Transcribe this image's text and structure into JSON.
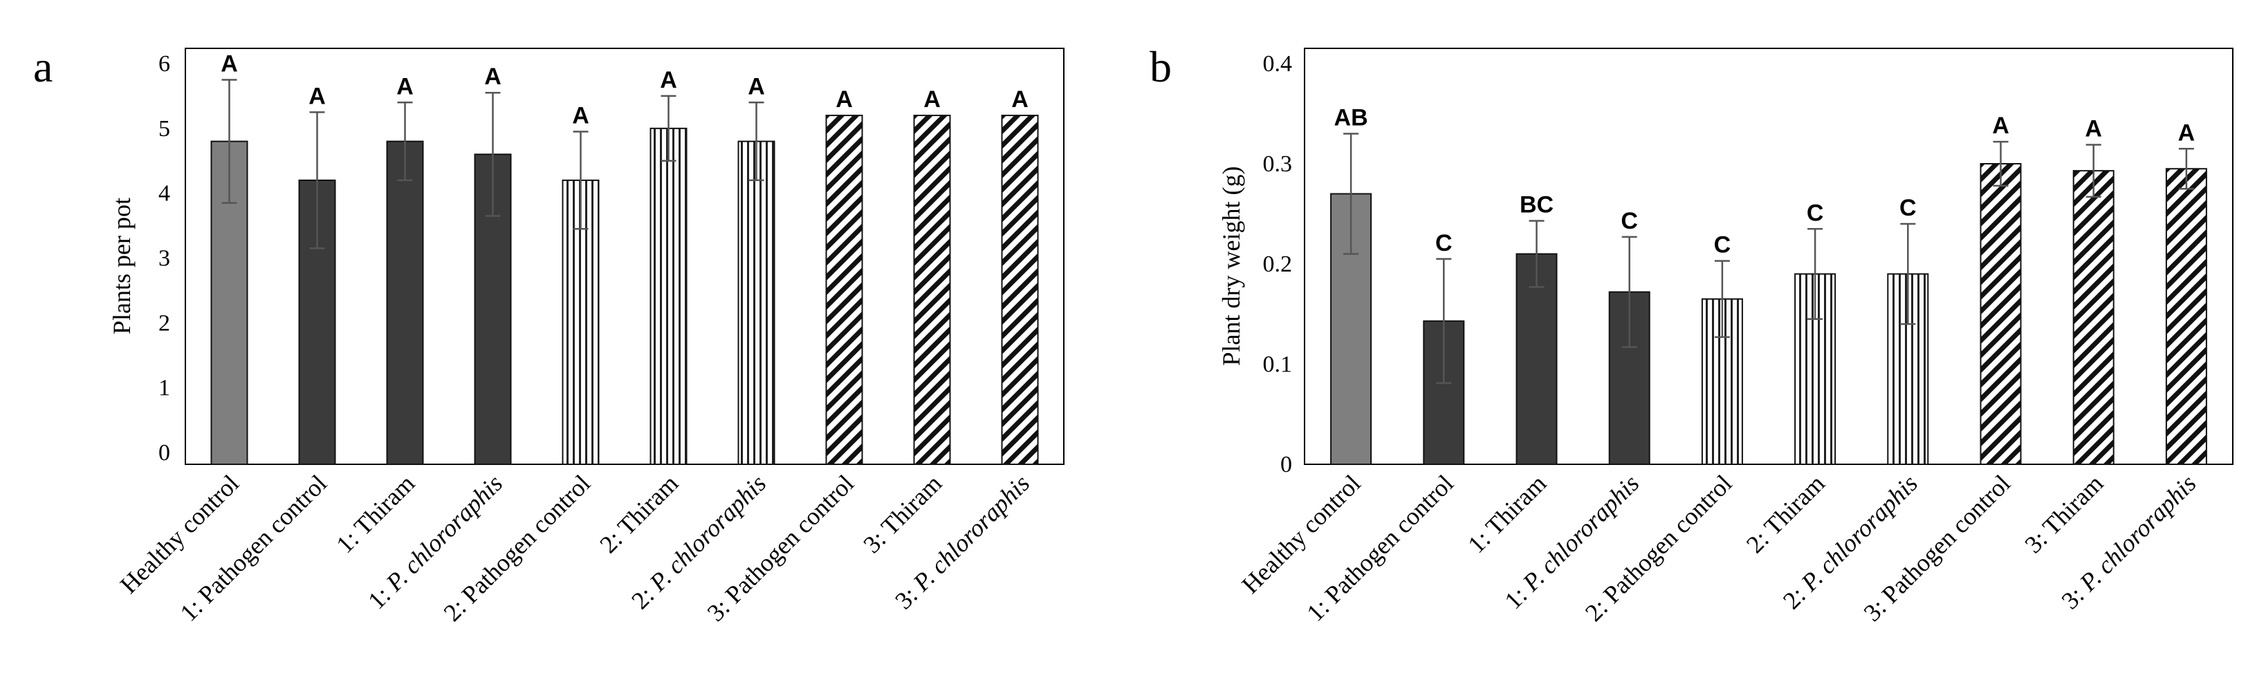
{
  "chart_data": [
    {
      "type": "bar",
      "panel_label": "a",
      "ylabel": "Plants per pot",
      "yticks": [
        0,
        1,
        2,
        3,
        4,
        5,
        6
      ],
      "ylim": [
        0,
        6
      ],
      "grid": false,
      "categories": [
        {
          "prefix": "",
          "text": "Healthy control",
          "italic": false
        },
        {
          "prefix": "1: ",
          "text": "Pathogen control",
          "italic": false
        },
        {
          "prefix": "1: ",
          "text": "Thiram",
          "italic": false
        },
        {
          "prefix": "1: ",
          "text": "P. chlororaphis",
          "italic": true
        },
        {
          "prefix": "2: ",
          "text": "Pathogen control",
          "italic": false
        },
        {
          "prefix": "2: ",
          "text": "Thiram",
          "italic": false
        },
        {
          "prefix": "2: ",
          "text": "P. chlororaphis",
          "italic": true
        },
        {
          "prefix": "3: ",
          "text": "Pathogen control",
          "italic": false
        },
        {
          "prefix": "3: ",
          "text": "Thiram",
          "italic": false
        },
        {
          "prefix": "3: ",
          "text": "P. chlororaphis",
          "italic": true
        }
      ],
      "patterns": [
        "gray",
        "dark",
        "dark",
        "dark",
        "vertical",
        "vertical",
        "vertical",
        "diagonal",
        "diagonal",
        "diagonal"
      ],
      "values": [
        4.8,
        4.2,
        4.8,
        4.6,
        4.2,
        5.0,
        4.8,
        5.2,
        5.2,
        5.2
      ],
      "errors": [
        0.95,
        1.05,
        0.6,
        0.95,
        0.75,
        0.5,
        0.6,
        0.0,
        0.0,
        0.0
      ],
      "significance": [
        "A",
        "A",
        "A",
        "A",
        "A",
        "A",
        "A",
        "A",
        "A",
        "A"
      ]
    },
    {
      "type": "bar",
      "panel_label": "b",
      "ylabel": "Plant dry weight (g)",
      "yticks": [
        0,
        0.1,
        0.2,
        0.3,
        0.4
      ],
      "ylim": [
        0,
        0.4
      ],
      "grid": false,
      "categories": [
        {
          "prefix": "",
          "text": "Healthy control",
          "italic": false
        },
        {
          "prefix": "1: ",
          "text": "Pathogen control",
          "italic": false
        },
        {
          "prefix": "1: ",
          "text": "Thiram",
          "italic": false
        },
        {
          "prefix": "1: ",
          "text": "P. chlororaphis",
          "italic": true
        },
        {
          "prefix": "2: ",
          "text": "Pathogen control",
          "italic": false
        },
        {
          "prefix": "2: ",
          "text": "Thiram",
          "italic": false
        },
        {
          "prefix": "2: ",
          "text": "P. chlororaphis",
          "italic": true
        },
        {
          "prefix": "3: ",
          "text": "Pathogen control",
          "italic": false
        },
        {
          "prefix": "3: ",
          "text": "Thiram",
          "italic": false
        },
        {
          "prefix": "3: ",
          "text": "P. chlororaphis",
          "italic": true
        }
      ],
      "patterns": [
        "gray",
        "dark",
        "dark",
        "dark",
        "vertical",
        "vertical",
        "vertical",
        "diagonal",
        "diagonal",
        "diagonal"
      ],
      "values": [
        0.27,
        0.143,
        0.21,
        0.172,
        0.165,
        0.19,
        0.19,
        0.3,
        0.293,
        0.295
      ],
      "errors": [
        0.06,
        0.062,
        0.033,
        0.055,
        0.038,
        0.045,
        0.05,
        0.022,
        0.026,
        0.02
      ],
      "significance": [
        "AB",
        "C",
        "BC",
        "C",
        "C",
        "C",
        "C",
        "A",
        "A",
        "A"
      ]
    }
  ]
}
